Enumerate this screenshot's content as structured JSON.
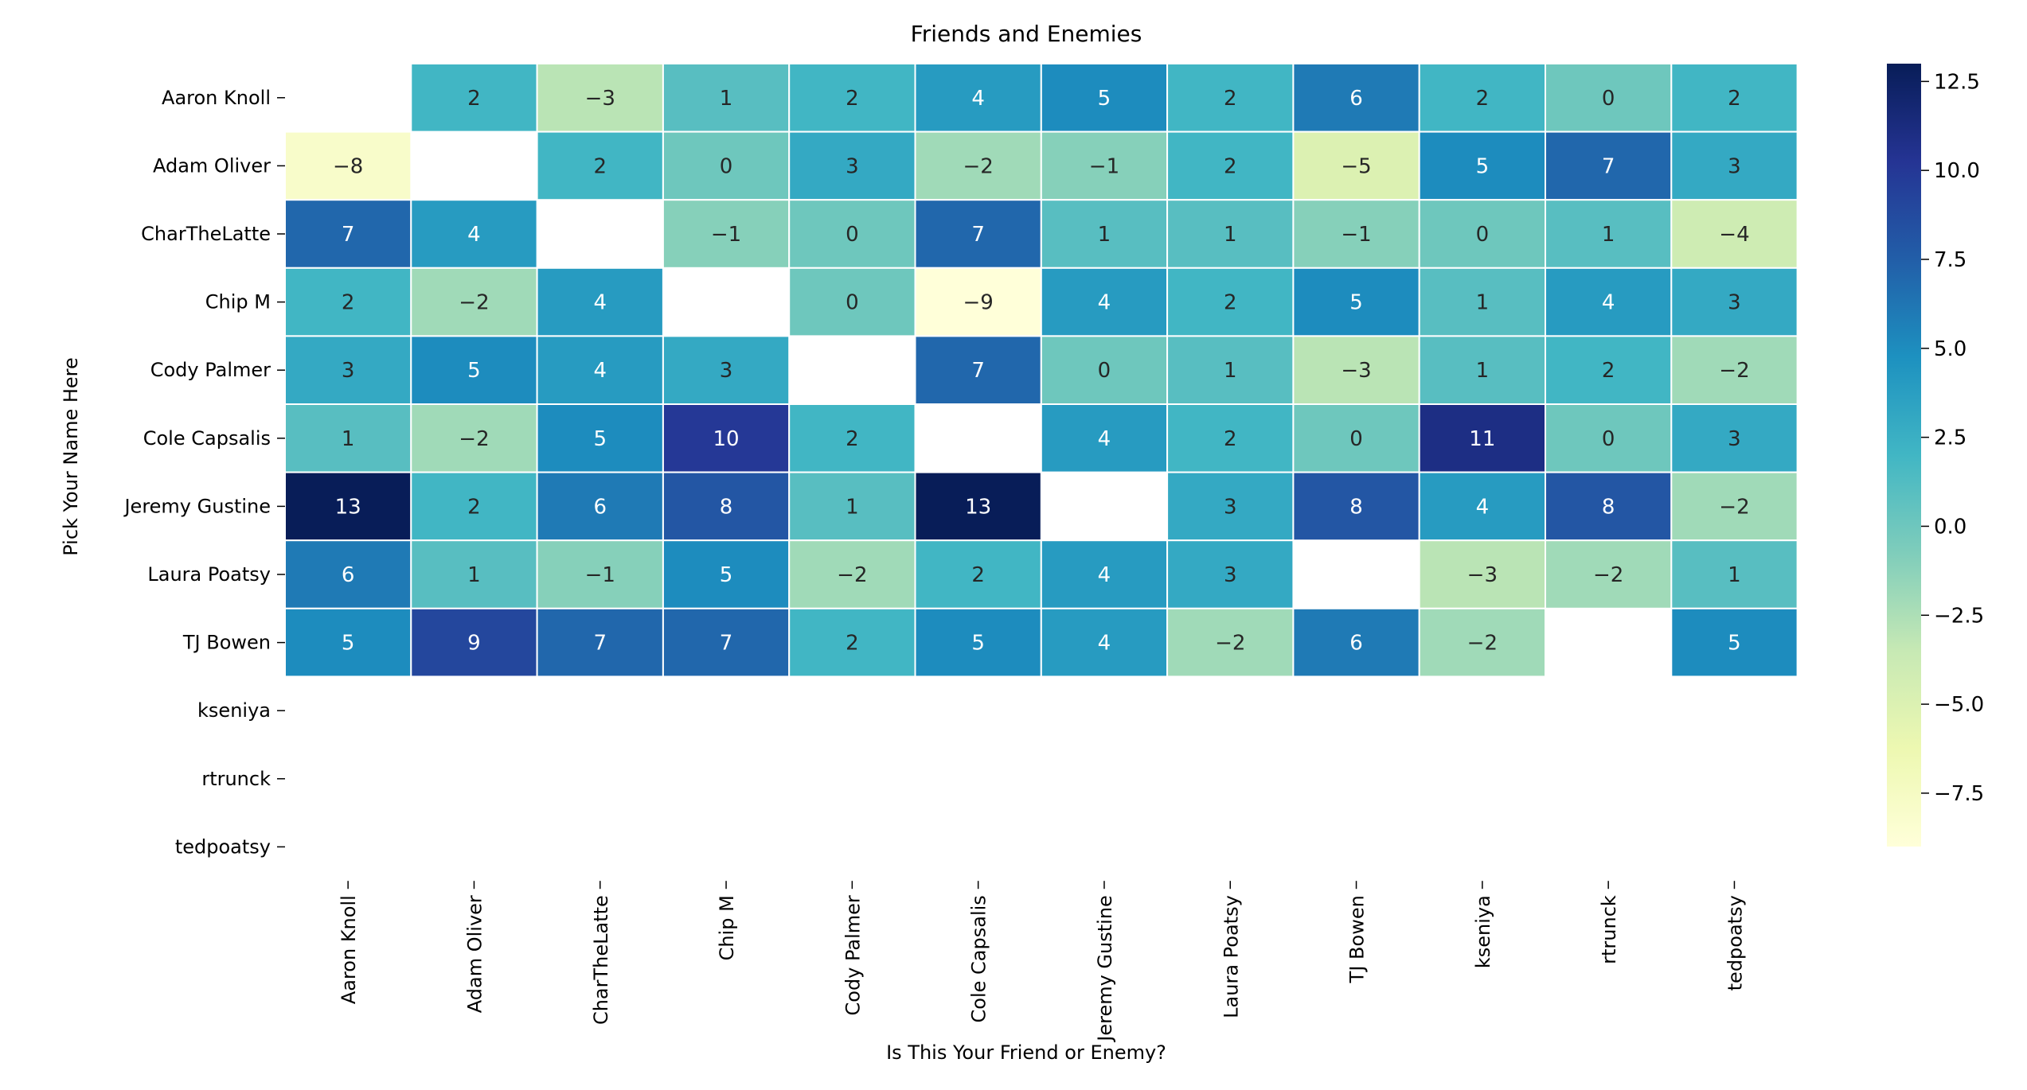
{
  "chart_data": {
    "type": "heatmap",
    "title": "Friends and Enemies",
    "xlabel": "Is This Your Friend or Enemy?",
    "ylabel": "Pick Your Name Here",
    "x_categories": [
      "Aaron Knoll",
      "Adam Oliver",
      "CharTheLatte",
      "Chip M",
      "Cody Palmer",
      "Cole Capsalis",
      "Jeremy Gustine",
      "Laura Poatsy",
      "TJ Bowen",
      "kseniya",
      "rtrunck",
      "tedpoatsy"
    ],
    "y_categories": [
      "Aaron Knoll",
      "Adam Oliver",
      "CharTheLatte",
      "Chip M",
      "Cody Palmer",
      "Cole Capsalis",
      "Jeremy Gustine",
      "Laura Poatsy",
      "TJ Bowen",
      "kseniya",
      "rtrunck",
      "tedpoatsy"
    ],
    "values": [
      [
        null,
        2,
        -3,
        1,
        2,
        4,
        5,
        2,
        6,
        2,
        0,
        2
      ],
      [
        -8,
        null,
        2,
        0,
        3,
        -2,
        -1,
        2,
        -5,
        5,
        7,
        3
      ],
      [
        7,
        4,
        null,
        -1,
        0,
        7,
        1,
        1,
        -1,
        0,
        1,
        -4
      ],
      [
        2,
        -2,
        4,
        null,
        0,
        -9,
        4,
        2,
        5,
        1,
        4,
        3
      ],
      [
        3,
        5,
        4,
        3,
        null,
        7,
        0,
        1,
        -3,
        1,
        2,
        -2
      ],
      [
        1,
        -2,
        5,
        10,
        2,
        null,
        4,
        2,
        0,
        11,
        0,
        3
      ],
      [
        13,
        2,
        6,
        8,
        1,
        13,
        null,
        3,
        8,
        4,
        8,
        -2
      ],
      [
        6,
        1,
        -1,
        5,
        -2,
        2,
        4,
        3,
        null,
        -3,
        -2,
        1
      ],
      [
        5,
        9,
        7,
        7,
        2,
        5,
        4,
        -2,
        6,
        -2,
        null,
        5
      ],
      [
        null,
        null,
        null,
        null,
        null,
        null,
        null,
        null,
        null,
        null,
        null,
        null
      ],
      [
        null,
        null,
        null,
        null,
        null,
        null,
        null,
        null,
        null,
        null,
        null,
        null
      ],
      [
        null,
        null,
        null,
        null,
        null,
        null,
        null,
        null,
        null,
        null,
        null,
        null
      ]
    ],
    "colorbar": {
      "colormap": "YlGnBu",
      "vmin": -9,
      "vmax": 13,
      "ticks": [
        12.5,
        10.0,
        7.5,
        5.0,
        2.5,
        0.0,
        -2.5,
        -5.0,
        -7.5
      ],
      "tick_labels": [
        "12.5",
        "10.0",
        "7.5",
        "5.0",
        "2.5",
        "0.0",
        "−2.5",
        "−5.0",
        "−7.5"
      ],
      "stops": [
        "#ffffd9",
        "#edf8b1",
        "#c7e9b4",
        "#7fcdbb",
        "#41b6c4",
        "#1d91c0",
        "#225ea8",
        "#253494",
        "#081d58"
      ]
    },
    "annotation_colors": {
      "dark_text": "#262626",
      "light_text": "#ffffff"
    },
    "cell_border_color": "#ffffff",
    "grid": false,
    "legend": "colorbar-right"
  }
}
